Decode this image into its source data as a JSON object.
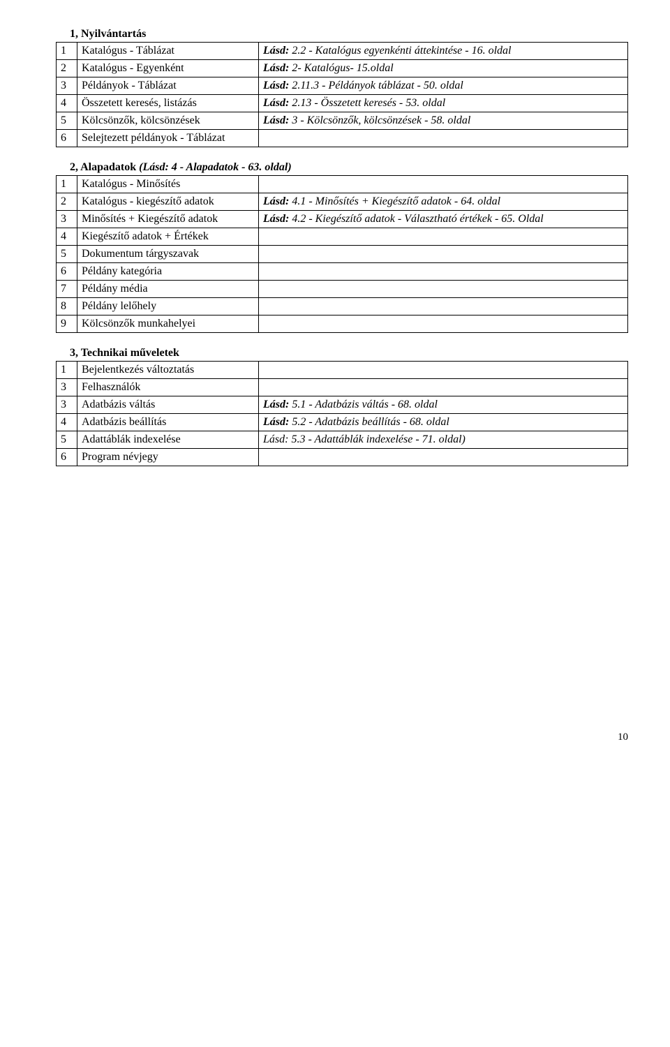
{
  "pageNumber": "10",
  "sections": [
    {
      "title_plain": "1, Nyilvántartás",
      "title_italic": "",
      "rows": [
        {
          "num": "1",
          "name": "Katalógus - Táblázat",
          "ref_bold": "Lásd:",
          "ref_rest": " 2.2 - Katalógus egyenkénti áttekintése - 16. oldal"
        },
        {
          "num": "2",
          "name": "Katalógus - Egyenként",
          "ref_bold": "Lásd:",
          "ref_rest": " 2- Katalógus- 15.oldal"
        },
        {
          "num": "3",
          "name": "Példányok - Táblázat",
          "ref_bold": "Lásd:",
          "ref_rest": " 2.11.3 - Példányok táblázat - 50. oldal"
        },
        {
          "num": "4",
          "name": "Összetett keresés, listázás",
          "ref_bold": "Lásd:",
          "ref_rest": " 2.13 - Összetett keresés - 53. oldal"
        },
        {
          "num": "5",
          "name": "Kölcsönzők, kölcsönzések",
          "ref_bold": "Lásd:",
          "ref_rest": " 3 - Kölcsönzők, kölcsönzések - 58. oldal"
        },
        {
          "num": "6",
          "name": "Selejtezett példányok - Táblázat",
          "ref_bold": "",
          "ref_rest": ""
        }
      ]
    },
    {
      "title_plain": "2, Alapadatok ",
      "title_italic": "(Lásd: 4 - Alapadatok - 63. oldal)",
      "rows": [
        {
          "num": "1",
          "name": "Katalógus - Minősítés",
          "ref_bold": "",
          "ref_rest": ""
        },
        {
          "num": "2",
          "name": "Katalógus - kiegészítő adatok",
          "ref_bold": "Lásd:",
          "ref_rest": " 4.1 - Minősítés + Kiegészítő adatok - 64. oldal"
        },
        {
          "num": "3",
          "name": "Minősítés + Kiegészítő adatok",
          "ref_bold": "Lásd:",
          "ref_rest": " 4.2 - Kiegészítő adatok - Választható értékek - 65. Oldal"
        },
        {
          "num": "4",
          "name": "Kiegészítő adatok + Értékek",
          "ref_bold": "",
          "ref_rest": ""
        },
        {
          "num": "5",
          "name": "Dokumentum tárgyszavak",
          "ref_bold": "",
          "ref_rest": ""
        },
        {
          "num": "6",
          "name": "Példány kategória",
          "ref_bold": "",
          "ref_rest": ""
        },
        {
          "num": "7",
          "name": "Példány média",
          "ref_bold": "",
          "ref_rest": ""
        },
        {
          "num": "8",
          "name": "Példány lelőhely",
          "ref_bold": "",
          "ref_rest": ""
        },
        {
          "num": "9",
          "name": "Kölcsönzők munkahelyei",
          "ref_bold": "",
          "ref_rest": ""
        }
      ]
    },
    {
      "title_plain": "3, Technikai műveletek",
      "title_italic": "",
      "rows": [
        {
          "num": "1",
          "name": "Bejelentkezés változtatás",
          "ref_bold": "",
          "ref_rest": ""
        },
        {
          "num": "3",
          "name": "Felhasználók",
          "ref_bold": "",
          "ref_rest": ""
        },
        {
          "num": "3",
          "name": "Adatbázis váltás",
          "ref_bold": "Lásd:",
          "ref_rest": " 5.1 - Adatbázis váltás - 68. oldal"
        },
        {
          "num": "4",
          "name": "Adatbázis beállítás",
          "ref_bold": "Lásd:",
          "ref_rest": " 5.2 - Adatbázis beállítás - 68. oldal"
        },
        {
          "num": "5",
          "name": "Adattáblák indexelése",
          "ref_bold": "",
          "ref_rest": "Lásd: 5.3 - Adattáblák indexelése - 71. oldal)"
        },
        {
          "num": "6",
          "name": "Program névjegy",
          "ref_bold": "",
          "ref_rest": ""
        }
      ]
    }
  ]
}
